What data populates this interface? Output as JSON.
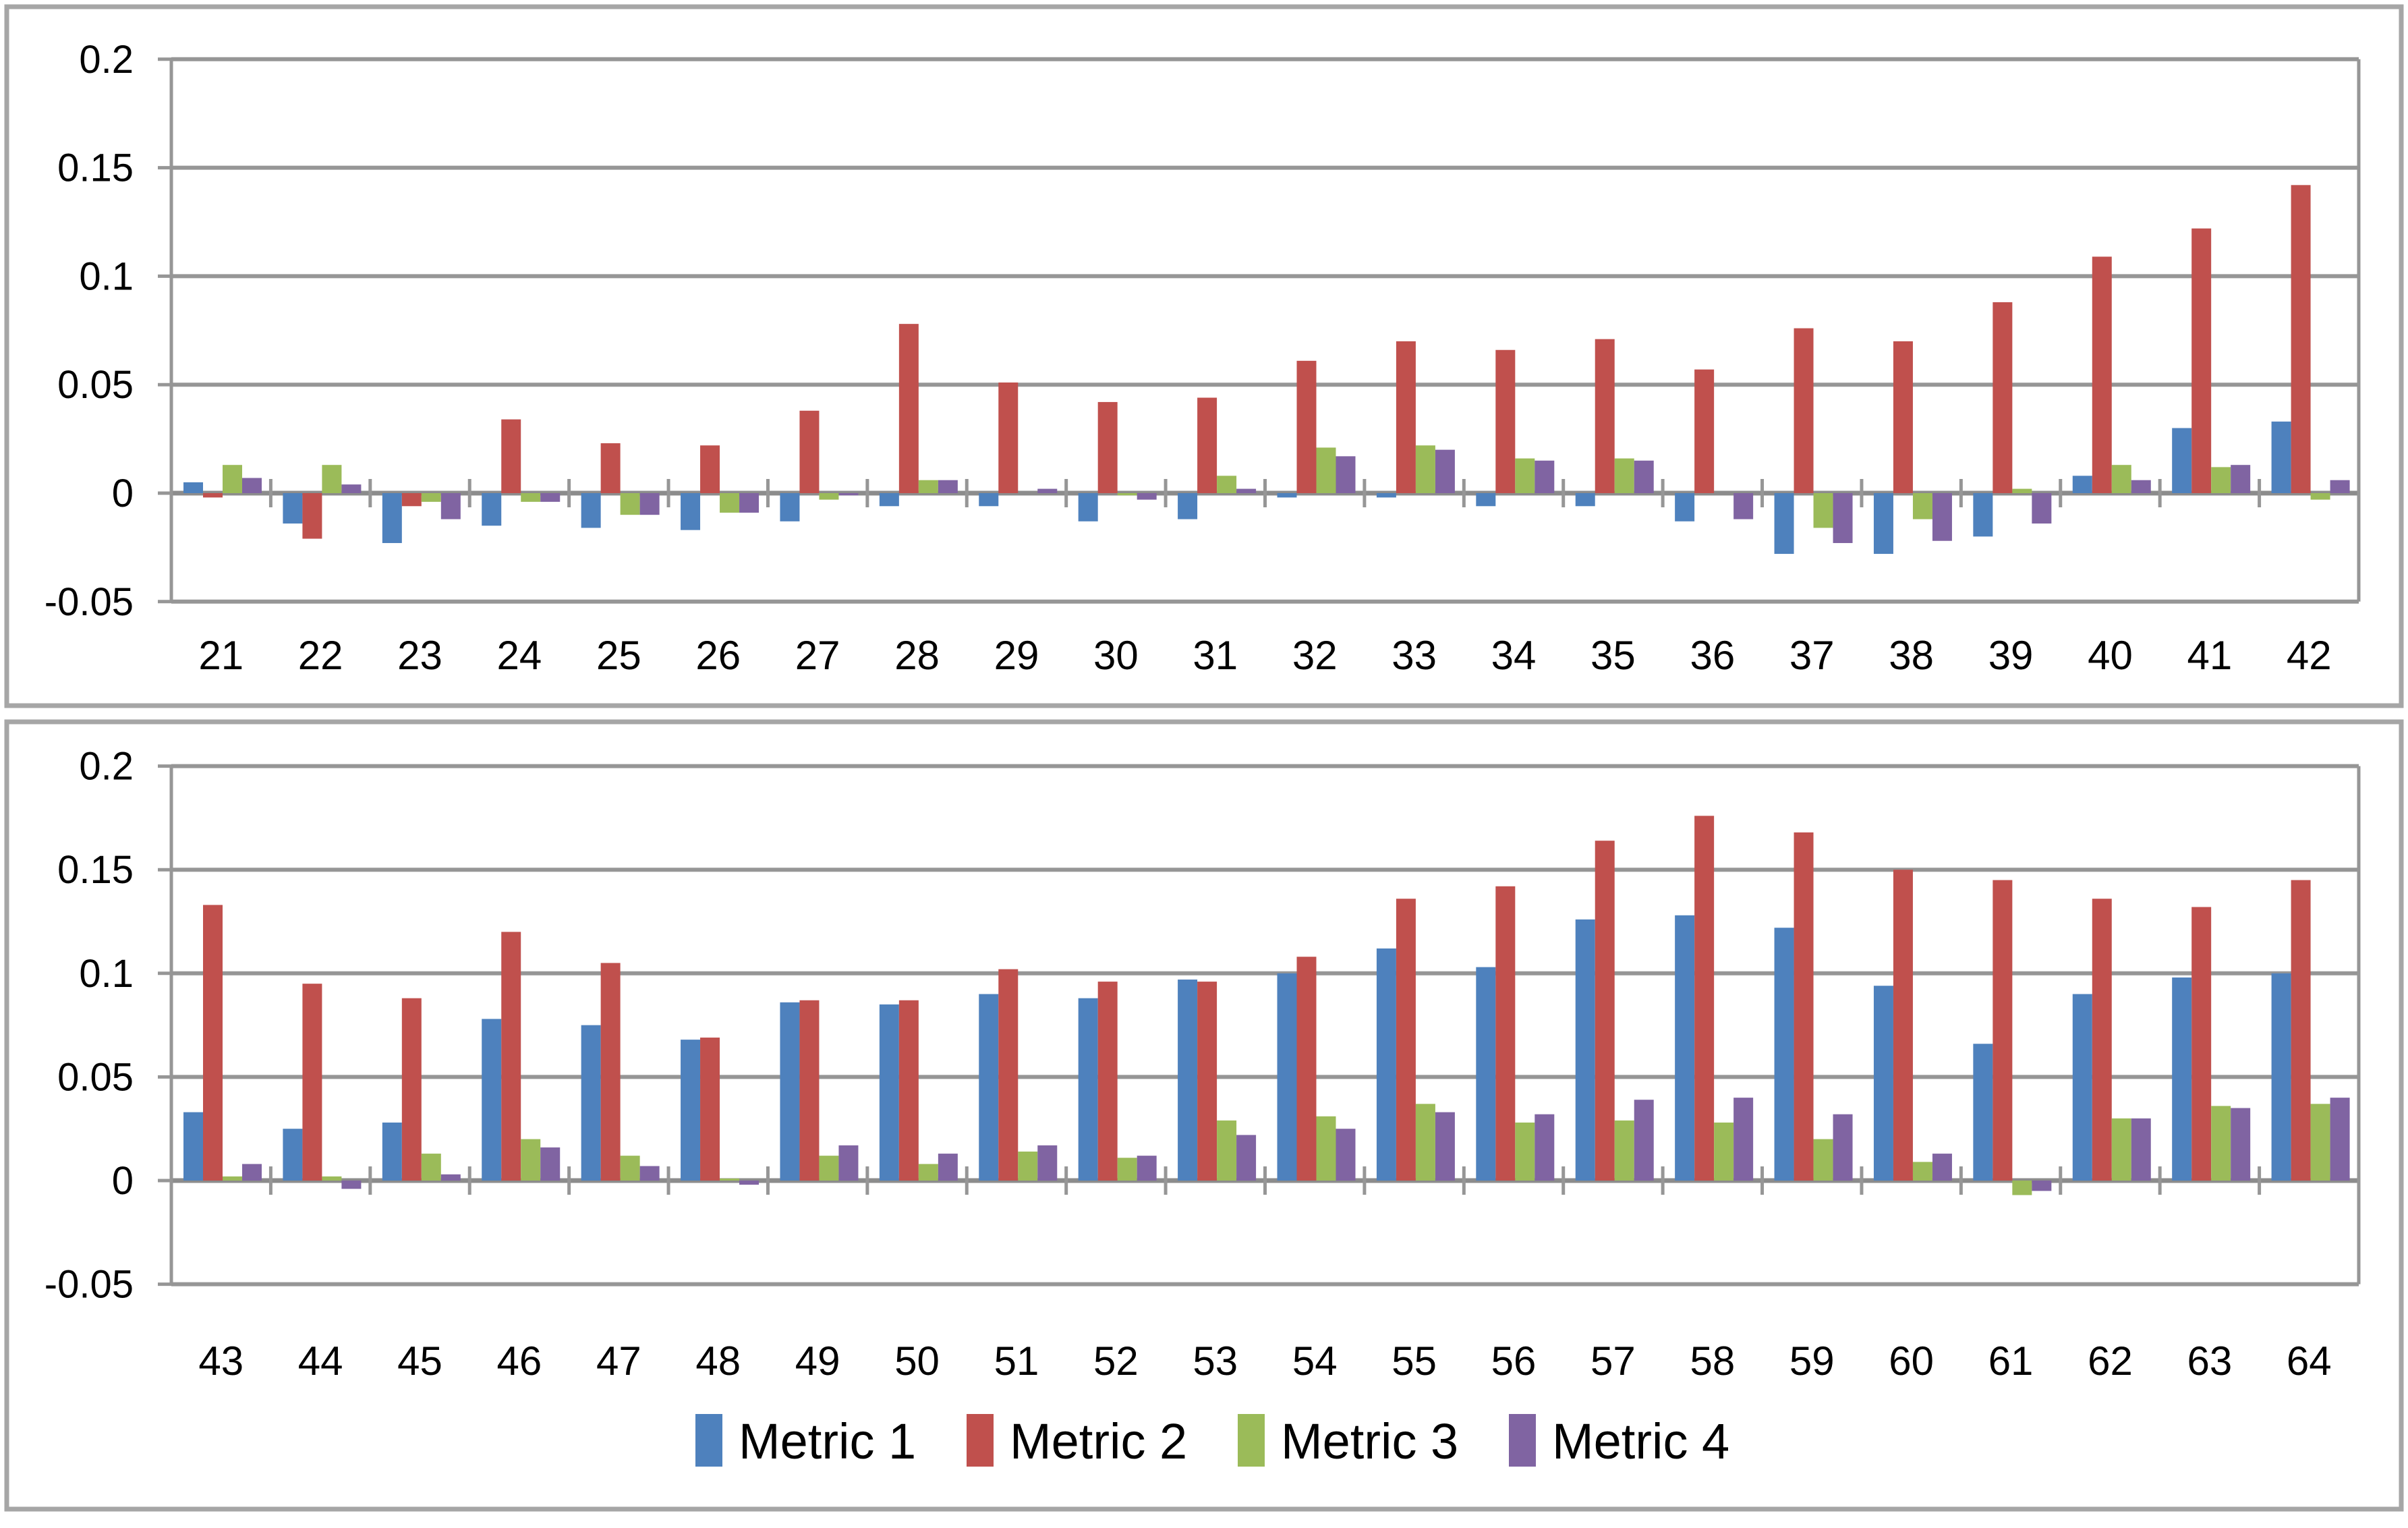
{
  "figure": {
    "background": "#FFFFFF",
    "panel_border_color": "#A6A6A6",
    "gridline_color": "#969696",
    "zero_line_color": "#8C8C8C",
    "text_color": "#000000"
  },
  "legend": {
    "position": "bottom-center",
    "items": [
      {
        "label": "Metric 1",
        "color": "#4E81BD"
      },
      {
        "label": "Metric 2",
        "color": "#C0504D"
      },
      {
        "label": "Metric 3",
        "color": "#9BBB59"
      },
      {
        "label": "Metric 4",
        "color": "#8064A2"
      }
    ]
  },
  "chart_data": [
    {
      "type": "bar",
      "panel": "top",
      "title": "",
      "xlabel": "",
      "ylabel": "",
      "ylim": [
        -0.05,
        0.2
      ],
      "grid": true,
      "show_legend": false,
      "ytick_values": [
        0.2,
        0.15,
        0.1,
        0.05,
        0,
        -0.05
      ],
      "ytick_labels": [
        "0.2",
        "0.15",
        "0.1",
        "0.05",
        "0",
        "-0.05"
      ],
      "categories": [
        "21",
        "22",
        "23",
        "24",
        "25",
        "26",
        "27",
        "28",
        "29",
        "30",
        "31",
        "32",
        "33",
        "34",
        "35",
        "36",
        "37",
        "38",
        "39",
        "40",
        "41",
        "42"
      ],
      "series": [
        {
          "name": "Metric 1",
          "color": "#4E81BD",
          "values": [
            0.005,
            -0.014,
            -0.023,
            -0.015,
            -0.016,
            -0.017,
            -0.013,
            -0.006,
            -0.006,
            -0.013,
            -0.012,
            -0.002,
            -0.002,
            -0.006,
            -0.006,
            -0.013,
            -0.028,
            -0.028,
            -0.02,
            0.008,
            0.03,
            0.033
          ]
        },
        {
          "name": "Metric 2",
          "color": "#C0504D",
          "values": [
            -0.002,
            -0.021,
            -0.006,
            0.034,
            0.023,
            0.022,
            0.038,
            0.078,
            0.051,
            0.042,
            0.044,
            0.061,
            0.07,
            0.066,
            0.071,
            0.057,
            0.076,
            0.07,
            0.088,
            0.109,
            0.122,
            0.142
          ]
        },
        {
          "name": "Metric 3",
          "color": "#9BBB59",
          "values": [
            0.013,
            0.013,
            -0.004,
            -0.004,
            -0.01,
            -0.009,
            -0.003,
            0.006,
            0.0,
            -0.001,
            0.008,
            0.021,
            0.022,
            0.016,
            0.016,
            0.0,
            -0.016,
            -0.012,
            0.002,
            0.013,
            0.012,
            -0.003
          ]
        },
        {
          "name": "Metric 4",
          "color": "#8064A2",
          "values": [
            0.007,
            0.004,
            -0.012,
            -0.004,
            -0.01,
            -0.009,
            -0.001,
            0.006,
            0.002,
            -0.003,
            0.002,
            0.017,
            0.02,
            0.015,
            0.015,
            -0.012,
            -0.023,
            -0.022,
            -0.014,
            0.006,
            0.013,
            0.006
          ]
        }
      ]
    },
    {
      "type": "bar",
      "panel": "bottom",
      "title": "",
      "xlabel": "",
      "ylabel": "",
      "ylim": [
        -0.05,
        0.2
      ],
      "grid": true,
      "show_legend": true,
      "ytick_values": [
        0.2,
        0.15,
        0.1,
        0.05,
        0,
        -0.05
      ],
      "ytick_labels": [
        "0.2",
        "0.15",
        "0.1",
        "0.05",
        "0",
        "-0.05"
      ],
      "categories": [
        "43",
        "44",
        "45",
        "46",
        "47",
        "48",
        "49",
        "50",
        "51",
        "52",
        "53",
        "54",
        "55",
        "56",
        "57",
        "58",
        "59",
        "60",
        "61",
        "62",
        "63",
        "64"
      ],
      "series": [
        {
          "name": "Metric 1",
          "color": "#4E81BD",
          "values": [
            0.033,
            0.025,
            0.028,
            0.078,
            0.075,
            0.068,
            0.086,
            0.085,
            0.09,
            0.088,
            0.097,
            0.1,
            0.112,
            0.103,
            0.126,
            0.128,
            0.122,
            0.094,
            0.066,
            0.09,
            0.098,
            0.1
          ]
        },
        {
          "name": "Metric 2",
          "color": "#C0504D",
          "values": [
            0.133,
            0.095,
            0.088,
            0.12,
            0.105,
            0.069,
            0.087,
            0.087,
            0.102,
            0.096,
            0.096,
            0.108,
            0.136,
            0.142,
            0.164,
            0.176,
            0.168,
            0.15,
            0.145,
            0.136,
            0.132,
            0.145
          ]
        },
        {
          "name": "Metric 3",
          "color": "#9BBB59",
          "values": [
            0.002,
            0.002,
            0.013,
            0.02,
            0.012,
            0.001,
            0.012,
            0.008,
            0.014,
            0.011,
            0.029,
            0.031,
            0.037,
            0.028,
            0.029,
            0.028,
            0.02,
            0.009,
            -0.007,
            0.03,
            0.036,
            0.037
          ]
        },
        {
          "name": "Metric 4",
          "color": "#8064A2",
          "values": [
            0.008,
            -0.004,
            0.003,
            0.016,
            0.007,
            -0.002,
            0.017,
            0.013,
            0.017,
            0.012,
            0.022,
            0.025,
            0.033,
            0.032,
            0.039,
            0.04,
            0.032,
            0.013,
            -0.005,
            0.03,
            0.035,
            0.04
          ]
        }
      ]
    }
  ]
}
